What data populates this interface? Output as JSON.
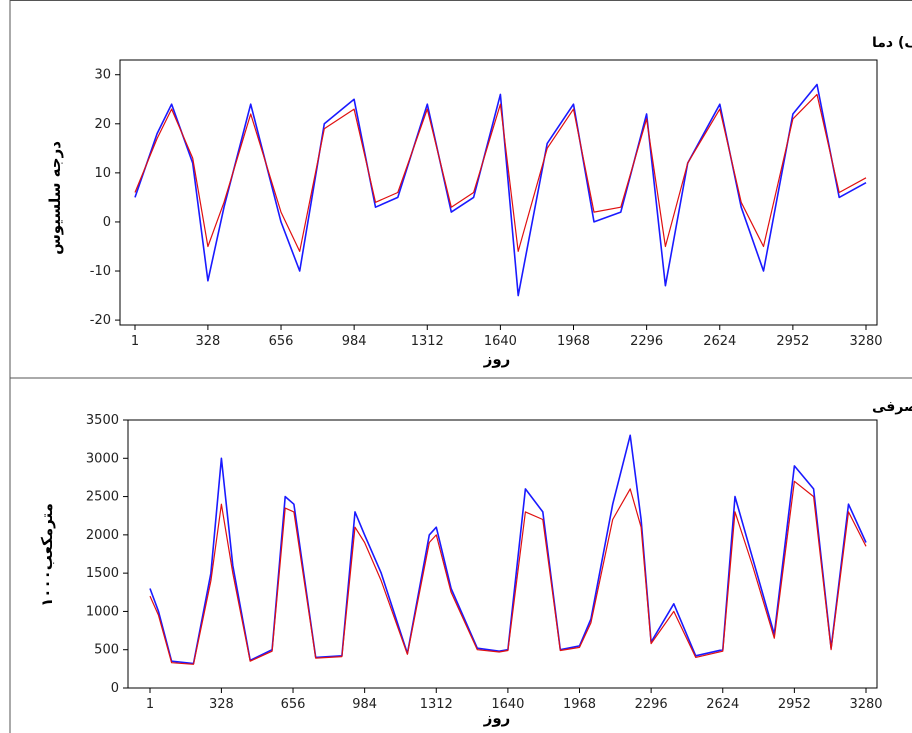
{
  "colors": {
    "primary_series": "#1a1aff",
    "smoothed_series": "#e01010",
    "axis": "#000000",
    "frame": "#555555"
  },
  "chart_data": [
    {
      "type": "line",
      "title": "الف) دما",
      "xlabel": "روز",
      "ylabel": "درجه سلسیوس",
      "x_ticks": [
        "1",
        "328",
        "656",
        "984",
        "1312",
        "1640",
        "1968",
        "2296",
        "2624",
        "2952",
        "3280"
      ],
      "y_ticks": [
        "30",
        "20",
        "10",
        "0",
        "-10",
        "-20"
      ],
      "xlim": [
        1,
        3280
      ],
      "ylim": [
        -21,
        33
      ],
      "grid": false,
      "series": [
        {
          "role": "observed",
          "color": "#1a1aff",
          "x": [
            1,
            100,
            165,
            260,
            328,
            400,
            520,
            656,
            740,
            850,
            984,
            1080,
            1180,
            1312,
            1420,
            1520,
            1640,
            1720,
            1850,
            1968,
            2060,
            2180,
            2296,
            2380,
            2480,
            2624,
            2720,
            2820,
            2952,
            3060,
            3160,
            3280
          ],
          "values": [
            5,
            18,
            24,
            12,
            -12,
            3,
            24,
            0,
            -10,
            20,
            25,
            3,
            5,
            24,
            2,
            5,
            26,
            -15,
            16,
            24,
            0,
            2,
            22,
            -13,
            12,
            24,
            3,
            -10,
            22,
            28,
            5,
            8
          ]
        },
        {
          "role": "smoothed",
          "color": "#e01010",
          "x": [
            1,
            100,
            165,
            260,
            328,
            400,
            520,
            656,
            740,
            850,
            984,
            1080,
            1180,
            1312,
            1420,
            1520,
            1640,
            1720,
            1850,
            1968,
            2060,
            2180,
            2296,
            2380,
            2480,
            2624,
            2720,
            2820,
            2952,
            3060,
            3160,
            3280
          ],
          "values": [
            6,
            17,
            23,
            13,
            -5,
            4,
            22,
            2,
            -6,
            19,
            23,
            4,
            6,
            23,
            3,
            6,
            24,
            -6,
            15,
            23,
            2,
            3,
            21,
            -5,
            12,
            23,
            4,
            -5,
            21,
            26,
            6,
            9
          ]
        }
      ]
    },
    {
      "type": "line",
      "title": "ب) گاز مصرفی",
      "xlabel": "روز",
      "ylabel": "۱۰۰۰مترمکعب",
      "x_ticks": [
        "1",
        "328",
        "656",
        "984",
        "1312",
        "1640",
        "1968",
        "2296",
        "2624",
        "2952",
        "3280"
      ],
      "y_ticks": [
        "3500",
        "3000",
        "2500",
        "2000",
        "1500",
        "1000",
        "500",
        "0"
      ],
      "xlim": [
        1,
        3280
      ],
      "ylim": [
        0,
        3500
      ],
      "grid": false,
      "series": [
        {
          "role": "observed",
          "color": "#1a1aff",
          "x": [
            1,
            40,
            100,
            200,
            280,
            328,
            380,
            460,
            560,
            620,
            660,
            760,
            880,
            940,
            984,
            1060,
            1180,
            1280,
            1312,
            1380,
            1500,
            1600,
            1640,
            1720,
            1800,
            1880,
            1968,
            2020,
            2120,
            2200,
            2250,
            2296,
            2400,
            2500,
            2624,
            2680,
            2760,
            2860,
            2952,
            3040,
            3120,
            3200,
            3280
          ],
          "values": [
            1300,
            1000,
            350,
            320,
            1500,
            3000,
            1600,
            360,
            500,
            2500,
            2400,
            400,
            420,
            2300,
            2000,
            1500,
            450,
            2000,
            2100,
            1300,
            520,
            480,
            500,
            2600,
            2300,
            500,
            550,
            900,
            2400,
            3300,
            2200,
            600,
            1100,
            420,
            500,
            2500,
            1700,
            700,
            2900,
            2600,
            520,
            2400,
            1900
          ]
        },
        {
          "role": "smoothed",
          "color": "#e01010",
          "x": [
            1,
            40,
            100,
            200,
            280,
            328,
            380,
            460,
            560,
            620,
            660,
            760,
            880,
            940,
            984,
            1060,
            1180,
            1280,
            1312,
            1380,
            1500,
            1600,
            1640,
            1720,
            1800,
            1880,
            1968,
            2020,
            2120,
            2200,
            2250,
            2296,
            2400,
            2500,
            2624,
            2680,
            2760,
            2860,
            2952,
            3040,
            3120,
            3200,
            3280
          ],
          "values": [
            1200,
            950,
            330,
            310,
            1400,
            2400,
            1500,
            350,
            480,
            2350,
            2300,
            390,
            410,
            2100,
            1900,
            1400,
            440,
            1900,
            2000,
            1250,
            500,
            470,
            490,
            2300,
            2200,
            490,
            530,
            850,
            2200,
            2600,
            2100,
            580,
            1000,
            400,
            480,
            2300,
            1600,
            650,
            2700,
            2500,
            500,
            2300,
            1850
          ]
        }
      ]
    }
  ]
}
